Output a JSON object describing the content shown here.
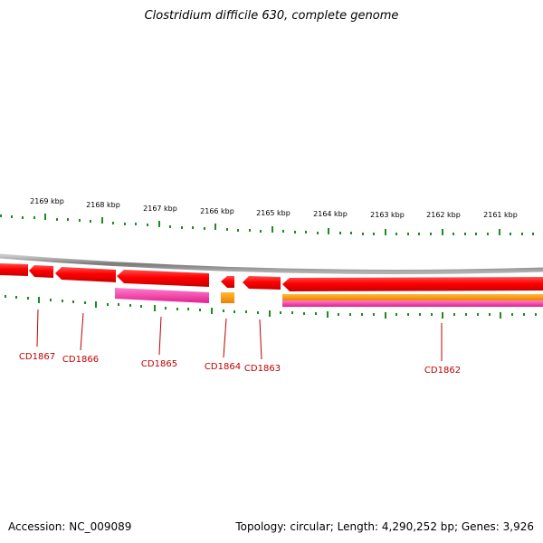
{
  "title": "Clostridium difficile 630, complete genome",
  "footer": {
    "accession": "Accession: NC_009089",
    "summary": "Topology: circular; Length: 4,290,252 bp; Genes: 3,926"
  },
  "scale_ticks": [
    "2169 kbp",
    "2168 kbp",
    "2167 kbp",
    "2166 kbp",
    "2165 kbp",
    "2164 kbp",
    "2163 kbp",
    "2162 kbp",
    "2161 kbp"
  ],
  "genes": [
    {
      "label": "CD1867"
    },
    {
      "label": "CD1866"
    },
    {
      "label": "CD1865"
    },
    {
      "label": "CD1864"
    },
    {
      "label": "CD1863"
    },
    {
      "label": "CD1862"
    }
  ],
  "colors": {
    "backbone": "#8a8a8a",
    "cds": "#ff0000",
    "gene_pink": "#ff3fae",
    "gene_orange": "#ff9900",
    "ticks": "#1f8a1f",
    "label": "#c00000"
  }
}
